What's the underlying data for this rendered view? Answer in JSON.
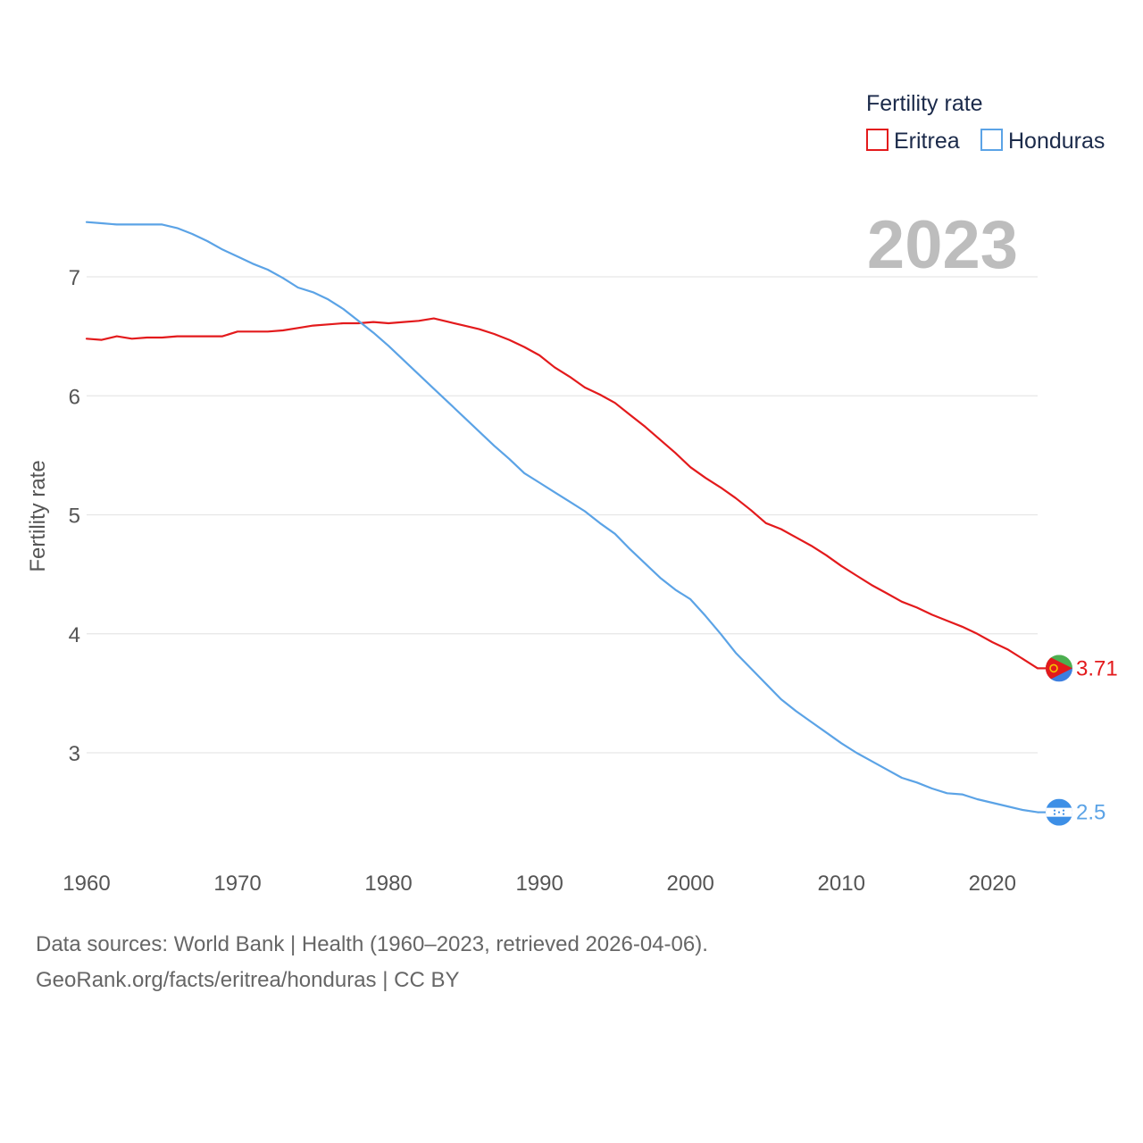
{
  "chart_data": {
    "type": "line",
    "title": "Fertility rate",
    "year_display": "2023",
    "xlabel": "",
    "ylabel": "Fertility rate",
    "xlim": [
      1960,
      2023
    ],
    "ylim": [
      2.1,
      7.6
    ],
    "x_ticks": [
      1960,
      1970,
      1980,
      1990,
      2000,
      2010,
      2020
    ],
    "y_ticks": [
      3,
      4,
      5,
      6,
      7
    ],
    "grid": true,
    "legend_position": "top-right",
    "x": [
      1960,
      1961,
      1962,
      1963,
      1964,
      1965,
      1966,
      1967,
      1968,
      1969,
      1970,
      1971,
      1972,
      1973,
      1974,
      1975,
      1976,
      1977,
      1978,
      1979,
      1980,
      1981,
      1982,
      1983,
      1984,
      1985,
      1986,
      1987,
      1988,
      1989,
      1990,
      1991,
      1992,
      1993,
      1994,
      1995,
      1996,
      1997,
      1998,
      1999,
      2000,
      2001,
      2002,
      2003,
      2004,
      2005,
      2006,
      2007,
      2008,
      2009,
      2010,
      2011,
      2012,
      2013,
      2014,
      2015,
      2016,
      2017,
      2018,
      2019,
      2020,
      2021,
      2022,
      2023
    ],
    "series": [
      {
        "name": "Eritrea",
        "color": "#e31a1c",
        "end_label": "3.71",
        "values": [
          6.48,
          6.47,
          6.5,
          6.48,
          6.49,
          6.49,
          6.5,
          6.5,
          6.5,
          6.5,
          6.54,
          6.54,
          6.54,
          6.55,
          6.57,
          6.59,
          6.6,
          6.61,
          6.61,
          6.62,
          6.61,
          6.62,
          6.63,
          6.65,
          6.62,
          6.59,
          6.56,
          6.52,
          6.47,
          6.41,
          6.34,
          6.24,
          6.16,
          6.07,
          6.01,
          5.94,
          5.84,
          5.74,
          5.63,
          5.52,
          5.4,
          5.31,
          5.23,
          5.14,
          5.04,
          4.93,
          4.88,
          4.81,
          4.74,
          4.66,
          4.57,
          4.49,
          4.41,
          4.34,
          4.27,
          4.22,
          4.16,
          4.11,
          4.06,
          4.0,
          3.93,
          3.87,
          3.79,
          3.71
        ]
      },
      {
        "name": "Honduras",
        "color": "#5ba3e6",
        "end_label": "2.5",
        "values": [
          7.46,
          7.45,
          7.44,
          7.44,
          7.44,
          7.44,
          7.41,
          7.36,
          7.3,
          7.23,
          7.17,
          7.11,
          7.06,
          6.99,
          6.91,
          6.87,
          6.81,
          6.73,
          6.63,
          6.53,
          6.42,
          6.3,
          6.18,
          6.06,
          5.94,
          5.82,
          5.7,
          5.58,
          5.47,
          5.35,
          5.27,
          5.19,
          5.11,
          5.03,
          4.93,
          4.84,
          4.71,
          4.59,
          4.47,
          4.37,
          4.29,
          4.15,
          4.0,
          3.84,
          3.71,
          3.58,
          3.45,
          3.35,
          3.26,
          3.17,
          3.08,
          3.0,
          2.93,
          2.86,
          2.79,
          2.75,
          2.7,
          2.66,
          2.65,
          2.61,
          2.58,
          2.55,
          2.52,
          2.5
        ]
      }
    ]
  },
  "footer": {
    "source_line": "Data sources: World Bank | Health (1960–2023, retrieved 2026-04-06).",
    "credit_line": "GeoRank.org/facts/eritrea/honduras | CC BY"
  }
}
